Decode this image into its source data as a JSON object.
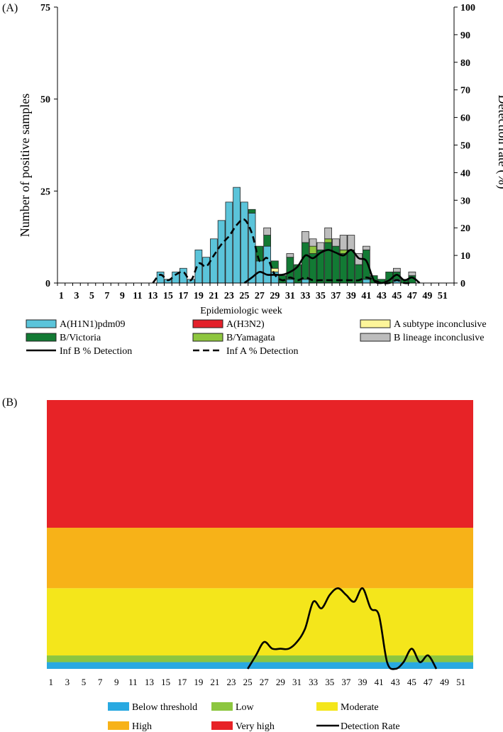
{
  "panel_a": {
    "label": "(A)",
    "xlabel": "Epidemiologic week",
    "ylabel_left": "Number of positive samples",
    "ylabel_right": "Detection rate (%)",
    "y_left_ticks": [
      "0",
      "25",
      "50",
      "75"
    ],
    "y_right_ticks": [
      "0",
      "10",
      "20",
      "30",
      "40",
      "50",
      "60",
      "70",
      "80",
      "90",
      "100"
    ],
    "x_ticks": [
      "1",
      "3",
      "5",
      "7",
      "9",
      "11",
      "13",
      "15",
      "17",
      "19",
      "21",
      "23",
      "25",
      "27",
      "29",
      "31",
      "33",
      "35",
      "37",
      "39",
      "41",
      "43",
      "45",
      "47",
      "49",
      "51"
    ],
    "legend": [
      {
        "key": "h1n1",
        "label": "A(H1N1)pdm09",
        "kind": "box",
        "color": "#5bc4da"
      },
      {
        "key": "h3n2",
        "label": "A(H3N2)",
        "kind": "box",
        "color": "#e3202a"
      },
      {
        "key": "ainc",
        "label": "A subtype inconclusive",
        "kind": "box",
        "color": "#fdf59a"
      },
      {
        "key": "bvic",
        "label": "B/Victoria",
        "kind": "box",
        "color": "#127a34"
      },
      {
        "key": "byam",
        "label": "B/Yamagata",
        "kind": "box",
        "color": "#8ec63f"
      },
      {
        "key": "binc",
        "label": "B lineage inconclusive",
        "kind": "box",
        "color": "#bdbdbd"
      },
      {
        "key": "infb",
        "label": "Inf B % Detection",
        "kind": "solid",
        "color": "#000000"
      },
      {
        "key": "infa",
        "label": "Inf A % Detection",
        "kind": "dashed",
        "color": "#000000"
      }
    ]
  },
  "panel_b": {
    "label": "(B)",
    "x_ticks": [
      "1",
      "3",
      "5",
      "7",
      "9",
      "11",
      "13",
      "15",
      "17",
      "19",
      "21",
      "23",
      "25",
      "27",
      "29",
      "31",
      "33",
      "35",
      "37",
      "39",
      "41",
      "43",
      "45",
      "47",
      "49",
      "51"
    ],
    "legend": [
      {
        "key": "below",
        "label": "Below threshold",
        "kind": "box",
        "color": "#29a9e1"
      },
      {
        "key": "low",
        "label": "Low",
        "kind": "box",
        "color": "#8cc63f"
      },
      {
        "key": "moderate",
        "label": "Moderate",
        "kind": "box",
        "color": "#f4e61b"
      },
      {
        "key": "high",
        "label": "High",
        "kind": "box",
        "color": "#f7b218"
      },
      {
        "key": "veryhigh",
        "label": "Very high",
        "kind": "box",
        "color": "#e72327"
      },
      {
        "key": "rate",
        "label": "Detection Rate",
        "kind": "solid",
        "color": "#000000"
      }
    ]
  },
  "chart_data": [
    {
      "type": "bar",
      "title": "(A)",
      "stacked": true,
      "xlabel": "Epidemiologic week",
      "ylabel": "Number of positive samples",
      "y2label": "Detection rate (%)",
      "ylim": [
        0,
        75
      ],
      "y2lim": [
        0,
        100
      ],
      "weeks": [
        13,
        14,
        15,
        16,
        17,
        18,
        19,
        20,
        21,
        22,
        23,
        24,
        25,
        26,
        27,
        28,
        29,
        30,
        31,
        32,
        33,
        34,
        35,
        36,
        37,
        38,
        39,
        40,
        41,
        42,
        43,
        44,
        45,
        46,
        47,
        48
      ],
      "series": [
        {
          "name": "A(H1N1)pdm09",
          "color": "#5bc4da",
          "values": [
            0,
            3,
            1,
            3,
            4,
            1,
            9,
            7,
            12,
            17,
            22,
            26,
            22,
            19,
            6,
            10,
            3,
            0,
            1,
            0,
            1,
            0,
            0,
            0,
            0,
            0,
            0,
            0,
            1,
            0,
            0,
            0,
            1,
            0,
            0,
            0
          ]
        },
        {
          "name": "A(H3N2)",
          "color": "#e3202a",
          "values": [
            0,
            0,
            0,
            0,
            0,
            0,
            0,
            0,
            0,
            0,
            0,
            0,
            0,
            0,
            0,
            0,
            0,
            0,
            0,
            0,
            0,
            0,
            0,
            0,
            0,
            0,
            0,
            0,
            0,
            0,
            0,
            0,
            0,
            0,
            0,
            0
          ]
        },
        {
          "name": "A subtype inconclusive",
          "color": "#fdf59a",
          "values": [
            0,
            0,
            0,
            0,
            0,
            0,
            0,
            0,
            0,
            0,
            0,
            0,
            0,
            0,
            0,
            0,
            1,
            0,
            0,
            0,
            0,
            0,
            0,
            0,
            0,
            0,
            0,
            0,
            0,
            0,
            0,
            0,
            0,
            0,
            0,
            0
          ]
        },
        {
          "name": "B/Victoria",
          "color": "#127a34",
          "values": [
            0,
            0,
            0,
            0,
            0,
            0,
            0,
            0,
            0,
            0,
            0,
            0,
            0,
            1,
            4,
            3,
            2,
            2,
            6,
            5,
            10,
            8,
            9,
            11,
            10,
            8,
            9,
            5,
            8,
            2,
            1,
            3,
            2,
            1,
            2,
            0
          ]
        },
        {
          "name": "B/Yamagata",
          "color": "#8ec63f",
          "values": [
            0,
            0,
            0,
            0,
            0,
            0,
            0,
            0,
            0,
            0,
            0,
            0,
            0,
            0,
            0,
            0,
            0,
            0,
            0,
            0,
            0,
            2,
            0,
            1,
            0,
            1,
            0,
            0,
            0,
            0,
            0,
            0,
            0,
            0,
            0,
            0
          ]
        },
        {
          "name": "B lineage inconclusive",
          "color": "#bdbdbd",
          "values": [
            0,
            0,
            0,
            0,
            0,
            0,
            0,
            0,
            0,
            0,
            0,
            0,
            0,
            0,
            0,
            2,
            0,
            0,
            1,
            0,
            3,
            2,
            2,
            3,
            2,
            4,
            4,
            3,
            1,
            0,
            0,
            0,
            1,
            0,
            1,
            0
          ]
        }
      ],
      "lines": [
        {
          "name": "Inf B % Detection",
          "style": "solid",
          "axis": "right",
          "x": [
            25,
            26,
            27,
            28,
            29,
            30,
            31,
            32,
            33,
            34,
            35,
            36,
            37,
            38,
            39,
            40,
            41,
            42,
            43,
            44,
            45,
            46,
            47,
            48
          ],
          "y": [
            0,
            2,
            4,
            3,
            3,
            3,
            4,
            6,
            10,
            9,
            11,
            12,
            11,
            10,
            12,
            9,
            8,
            1,
            0,
            1,
            3,
            1,
            2,
            0
          ]
        },
        {
          "name": "Inf A % Detection",
          "style": "dashed",
          "axis": "right",
          "x": [
            13,
            14,
            15,
            16,
            17,
            18,
            19,
            20,
            21,
            22,
            23,
            24,
            25,
            26,
            27,
            28,
            29,
            30,
            31,
            32,
            33,
            34,
            35,
            36,
            37,
            38,
            39,
            40,
            41,
            42,
            43,
            44,
            45,
            46,
            47
          ],
          "y": [
            0,
            3,
            1,
            3,
            4,
            1,
            7,
            6,
            10,
            14,
            17,
            21,
            23,
            18,
            8,
            9,
            3,
            1,
            2,
            1,
            2,
            1,
            1,
            1,
            1,
            1,
            1,
            1,
            2,
            1,
            0,
            0,
            1,
            0,
            0
          ]
        }
      ]
    },
    {
      "type": "area",
      "title": "(B)",
      "x_range": [
        1,
        52
      ],
      "bands": [
        {
          "name": "Below threshold",
          "color": "#29a9e1",
          "from": 0,
          "to": 1
        },
        {
          "name": "Low",
          "color": "#8cc63f",
          "from": 1,
          "to": 2
        },
        {
          "name": "Moderate",
          "color": "#f4e61b",
          "from": 2,
          "to": 12
        },
        {
          "name": "High",
          "color": "#f7b218",
          "from": 12,
          "to": 21
        },
        {
          "name": "Very high",
          "color": "#e72327",
          "from": 21,
          "to": 40
        }
      ],
      "ylim": [
        0,
        40
      ],
      "line": {
        "name": "Detection Rate",
        "x": [
          25,
          26,
          27,
          28,
          29,
          30,
          31,
          32,
          33,
          34,
          35,
          36,
          37,
          38,
          39,
          40,
          41,
          42,
          43,
          44,
          45,
          46,
          47,
          48
        ],
        "y": [
          0,
          2,
          4,
          3,
          3,
          3,
          4,
          6,
          10,
          9,
          11,
          12,
          11,
          10,
          12,
          9,
          8,
          1,
          0,
          1,
          3,
          1,
          2,
          0
        ]
      }
    }
  ]
}
